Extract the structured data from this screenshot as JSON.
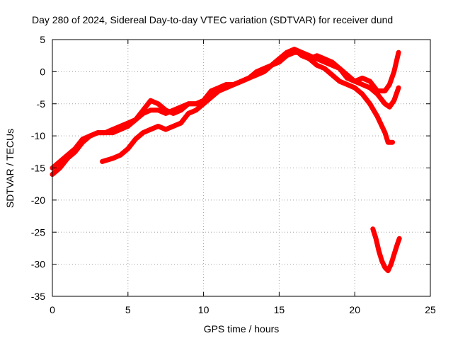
{
  "chart_data": {
    "type": "line",
    "title": "Day 280 of 2024, Sidereal Day-to-day VTEC variation (SDTVAR) for receiver dund",
    "xlabel": "GPS time / hours",
    "ylabel": "SDTVAR / TECUs",
    "xlim": [
      0,
      25
    ],
    "ylim": [
      -35,
      5
    ],
    "x_ticks": [
      "0",
      "5",
      "10",
      "15",
      "20",
      "25"
    ],
    "y_ticks": [
      "5",
      "0",
      "-5",
      "-10",
      "-15",
      "-20",
      "-25",
      "-30",
      "-35"
    ],
    "grid": true,
    "legend": "none",
    "series_color": "#ff0000",
    "series": [
      {
        "x": [
          0.0,
          0.5,
          1.0,
          1.5,
          2.0,
          2.5,
          3.0,
          3.5,
          4.0,
          4.5,
          5.0,
          5.5,
          6.0,
          6.5,
          7.0,
          7.5,
          8.0,
          8.5,
          9.0,
          9.5,
          10.0,
          10.5,
          11.0,
          11.5,
          12.0,
          12.5,
          13.0,
          13.5,
          14.0,
          14.5,
          15.0,
          15.5,
          16.0,
          16.5,
          17.0,
          17.5,
          18.0,
          18.5,
          19.0,
          19.5,
          20.0,
          20.5,
          21.0,
          21.5,
          22.0,
          22.3,
          22.6,
          22.9
        ],
        "y": [
          -15,
          -14,
          -13,
          -12,
          -10.5,
          -10,
          -9.5,
          -9.5,
          -9,
          -8.5,
          -8,
          -7.5,
          -6.5,
          -6,
          -6,
          -6.5,
          -6,
          -5.5,
          -5,
          -5,
          -4.5,
          -3.5,
          -3,
          -2.5,
          -2,
          -1.5,
          -1,
          -0.5,
          0,
          1,
          2,
          2.5,
          3,
          3,
          2.5,
          2,
          1.5,
          1,
          0.5,
          -0.5,
          -1.5,
          -2,
          -2.5,
          -3.5,
          -5,
          -5.5,
          -4.5,
          -2.5
        ]
      },
      {
        "x": [
          0.0,
          0.5,
          1.0,
          1.5,
          2.0,
          2.5,
          3.0,
          3.5,
          4.0,
          4.5,
          5.0,
          5.5,
          6.0,
          6.5,
          7.0,
          7.5,
          8.0,
          8.5,
          9.0,
          9.5,
          10.0,
          10.5,
          11.0,
          11.5,
          12.0,
          12.5,
          13.0,
          13.5,
          14.0,
          14.5,
          15.0,
          15.5,
          16.0,
          16.5,
          17.0,
          17.5,
          18.0,
          18.5,
          19.0,
          19.5,
          20.0,
          20.5,
          21.0,
          21.5,
          22.0,
          22.3,
          22.6,
          22.9
        ],
        "y": [
          -16,
          -15,
          -13.5,
          -12.5,
          -11,
          -10,
          -9.5,
          -9.5,
          -9.5,
          -9,
          -8.5,
          -7.5,
          -6,
          -4.5,
          -5,
          -6,
          -6.5,
          -6,
          -5,
          -5,
          -4.5,
          -3,
          -2.5,
          -2,
          -2,
          -1.5,
          -1,
          0,
          0.5,
          1,
          2,
          3,
          3.5,
          3,
          2,
          2.5,
          2,
          1.5,
          0.5,
          -1,
          -1.5,
          -1,
          -1.5,
          -3,
          -3,
          -2,
          0,
          3
        ]
      },
      {
        "x": [
          3.3,
          4.0,
          4.5,
          5.0,
          5.5,
          6.0,
          6.5,
          7.0,
          7.5,
          8.0,
          8.5,
          9.0,
          9.5,
          10.0,
          10.5,
          11.0,
          11.5,
          12.0,
          12.5,
          13.0,
          13.5,
          14.0,
          14.5,
          15.0,
          15.5,
          16.0,
          16.5,
          17.0,
          17.5,
          18.0,
          18.5,
          19.0,
          19.5,
          20.0,
          20.5,
          21.0,
          21.5,
          22.0,
          22.2,
          22.5
        ],
        "y": [
          -14,
          -13.5,
          -13,
          -12,
          -10.5,
          -9.5,
          -9,
          -8.5,
          -9,
          -8.5,
          -8,
          -6.5,
          -6,
          -5,
          -4,
          -3,
          -2.5,
          -2,
          -1.5,
          -1,
          -0.5,
          0,
          1,
          1.5,
          2.5,
          3.5,
          2.5,
          2,
          1,
          0.5,
          -0.5,
          -1.5,
          -2,
          -2.5,
          -3.5,
          -5,
          -7,
          -9.5,
          -11,
          -11
        ]
      },
      {
        "x": [
          21.2,
          21.4,
          21.6,
          21.8,
          22.0,
          22.2,
          22.4,
          22.6,
          22.8,
          22.95
        ],
        "y": [
          -24.5,
          -26,
          -28,
          -29.5,
          -30.5,
          -31,
          -30,
          -28.5,
          -27,
          -26
        ]
      }
    ]
  }
}
